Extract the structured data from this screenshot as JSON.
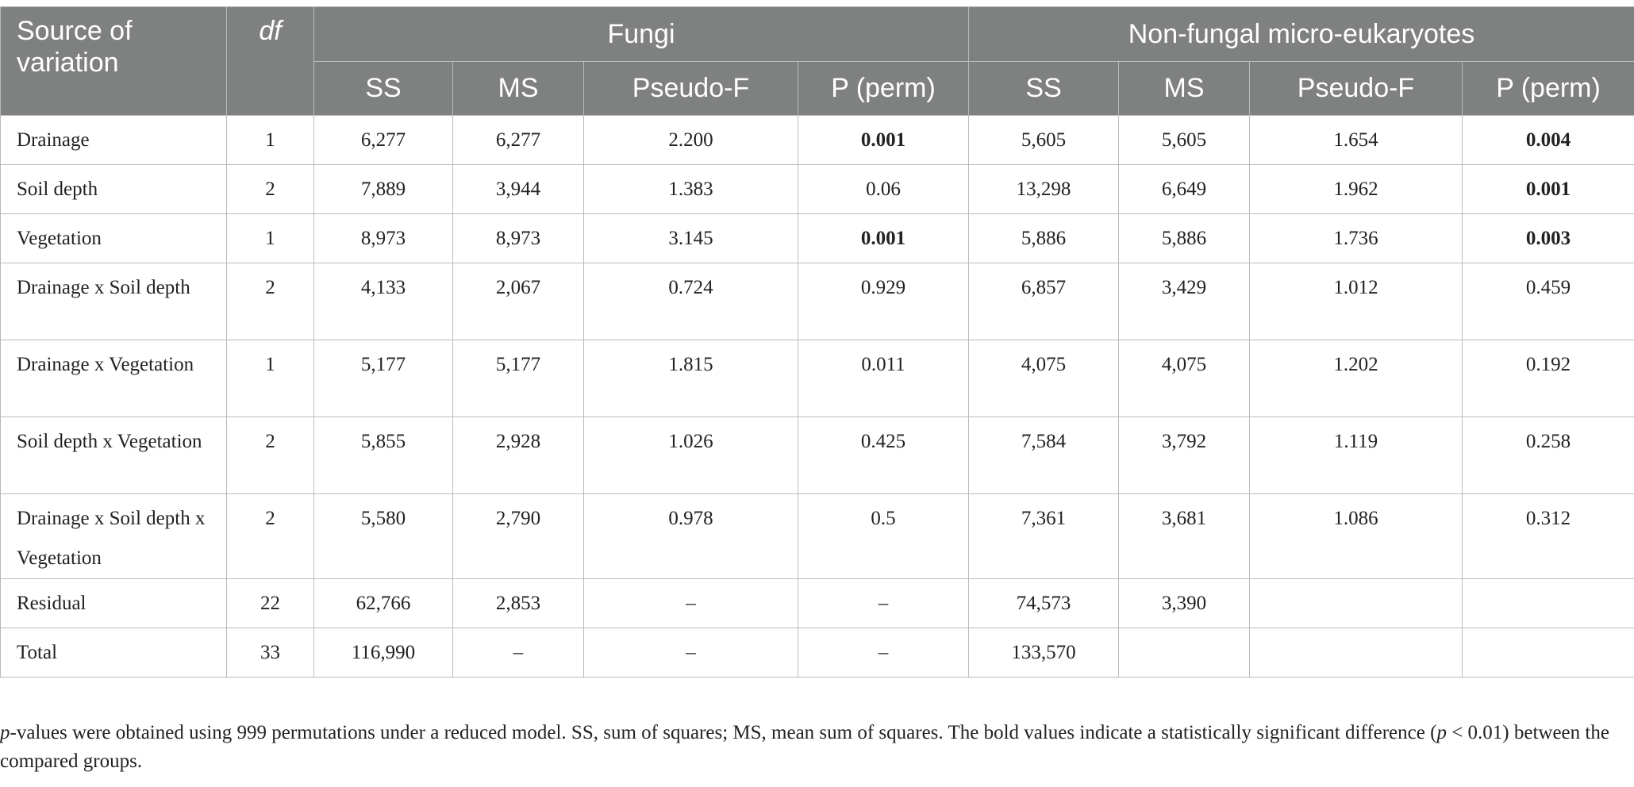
{
  "header": {
    "source_of_variation": "Source of variation",
    "df": "df",
    "groups": [
      "Fungi",
      "Non-fungal micro-eukaryotes"
    ],
    "subcolumns": [
      "SS",
      "MS",
      "Pseudo-F",
      "P (perm)"
    ]
  },
  "rows": [
    {
      "source": "Drainage",
      "df": "1",
      "fungi": [
        "6,277",
        "6,277",
        "2.200",
        "0.001"
      ],
      "fungi_bold": [
        false,
        false,
        false,
        true
      ],
      "nonfungal": [
        "5,605",
        "5,605",
        "1.654",
        "0.004"
      ],
      "nonfungal_bold": [
        false,
        false,
        false,
        true
      ],
      "tall": false
    },
    {
      "source": "Soil depth",
      "df": "2",
      "fungi": [
        "7,889",
        "3,944",
        "1.383",
        "0.06"
      ],
      "fungi_bold": [
        false,
        false,
        false,
        false
      ],
      "nonfungal": [
        "13,298",
        "6,649",
        "1.962",
        "0.001"
      ],
      "nonfungal_bold": [
        false,
        false,
        false,
        true
      ],
      "tall": false
    },
    {
      "source": "Vegetation",
      "df": "1",
      "fungi": [
        "8,973",
        "8,973",
        "3.145",
        "0.001"
      ],
      "fungi_bold": [
        false,
        false,
        false,
        true
      ],
      "nonfungal": [
        "5,886",
        "5,886",
        "1.736",
        "0.003"
      ],
      "nonfungal_bold": [
        false,
        false,
        false,
        true
      ],
      "tall": false
    },
    {
      "source": "Drainage x Soil depth",
      "df": "2",
      "fungi": [
        "4,133",
        "2,067",
        "0.724",
        "0.929"
      ],
      "fungi_bold": [
        false,
        false,
        false,
        false
      ],
      "nonfungal": [
        "6,857",
        "3,429",
        "1.012",
        "0.459"
      ],
      "nonfungal_bold": [
        false,
        false,
        false,
        false
      ],
      "tall": true
    },
    {
      "source": "Drainage x Vegetation",
      "df": "1",
      "fungi": [
        "5,177",
        "5,177",
        "1.815",
        "0.011"
      ],
      "fungi_bold": [
        false,
        false,
        false,
        false
      ],
      "nonfungal": [
        "4,075",
        "4,075",
        "1.202",
        "0.192"
      ],
      "nonfungal_bold": [
        false,
        false,
        false,
        false
      ],
      "tall": true
    },
    {
      "source": "Soil depth x Vegetation",
      "df": "2",
      "fungi": [
        "5,855",
        "2,928",
        "1.026",
        "0.425"
      ],
      "fungi_bold": [
        false,
        false,
        false,
        false
      ],
      "nonfungal": [
        "7,584",
        "3,792",
        "1.119",
        "0.258"
      ],
      "nonfungal_bold": [
        false,
        false,
        false,
        false
      ],
      "tall": true
    },
    {
      "source": "Drainage x Soil depth x Vegetation",
      "df": "2",
      "fungi": [
        "5,580",
        "2,790",
        "0.978",
        "0.5"
      ],
      "fungi_bold": [
        false,
        false,
        false,
        false
      ],
      "nonfungal": [
        "7,361",
        "3,681",
        "1.086",
        "0.312"
      ],
      "nonfungal_bold": [
        false,
        false,
        false,
        false
      ],
      "tall": true
    },
    {
      "source": "Residual",
      "df": "22",
      "fungi": [
        "62,766",
        "2,853",
        "–",
        "–"
      ],
      "fungi_bold": [
        false,
        false,
        false,
        false
      ],
      "nonfungal": [
        "74,573",
        "3,390",
        "",
        ""
      ],
      "nonfungal_bold": [
        false,
        false,
        false,
        false
      ],
      "tall": false
    },
    {
      "source": "Total",
      "df": "33",
      "fungi": [
        "116,990",
        "–",
        "–",
        "–"
      ],
      "fungi_bold": [
        false,
        false,
        false,
        false
      ],
      "nonfungal": [
        "133,570",
        "",
        "",
        ""
      ],
      "nonfungal_bold": [
        false,
        false,
        false,
        false
      ],
      "tall": false
    }
  ],
  "footnote": {
    "p_word": "p",
    "part1": "-values were obtained using 999 permutations under a reduced model. SS, sum of squares; MS, mean sum of squares. The bold values indicate a statistically significant difference (",
    "p_inline": "p",
    "part2": " < 0.01) between the compared groups."
  }
}
